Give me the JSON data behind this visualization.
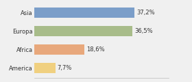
{
  "categories": [
    "Asia",
    "Europa",
    "Africa",
    "America"
  ],
  "values": [
    37.2,
    36.5,
    18.6,
    7.7
  ],
  "labels": [
    "37,2%",
    "36,5%",
    "18,6%",
    "7,7%"
  ],
  "bar_colors": [
    "#7b9ec9",
    "#a8bc8a",
    "#e8a87c",
    "#f0d080"
  ],
  "background_color": "#f0f0f0",
  "xlim": [
    0,
    50
  ],
  "label_fontsize": 6.0,
  "category_fontsize": 6.0,
  "bar_height": 0.55
}
